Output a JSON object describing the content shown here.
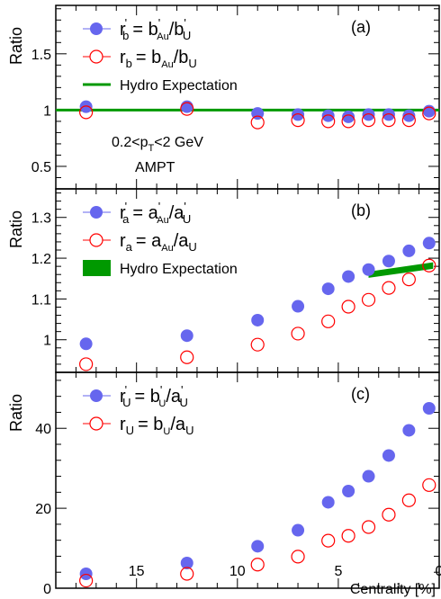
{
  "x_axis": {
    "label": "Centrality [%]",
    "range": [
      19.0,
      0.0
    ],
    "ticks": [
      15,
      10,
      5,
      0
    ]
  },
  "colors": {
    "filled": "#6666ee",
    "open": "#ff0000",
    "hydro": "#009900"
  },
  "chart_data": [
    {
      "type": "scatter",
      "panel_label": "(a)",
      "ylabel": "Ratio",
      "ylim": [
        0.3,
        1.93
      ],
      "yticks": [
        0.5,
        1.0,
        1.5
      ],
      "ytick_labels": [
        "0.5",
        "1",
        "1.5"
      ],
      "annotations": [
        "0.2<p_T<2 GeV",
        "AMPT"
      ],
      "x": [
        17.5,
        12.5,
        9,
        7,
        5.5,
        4.5,
        3.5,
        2.5,
        1.5,
        0.5
      ],
      "series": [
        {
          "name": "r'_b = b'_Au / b'_U",
          "style": "filled-circle",
          "values": [
            1.03,
            1.03,
            0.97,
            0.96,
            0.95,
            0.94,
            0.96,
            0.96,
            0.95,
            0.99
          ]
        },
        {
          "name": "r_b = b_Au / b_U",
          "style": "open-circle",
          "values": [
            0.98,
            1.01,
            0.89,
            0.91,
            0.9,
            0.9,
            0.91,
            0.91,
            0.91,
            0.97
          ]
        }
      ],
      "hydro": {
        "name": "Hydro Expectation",
        "style": "line",
        "x": [
          19,
          0
        ],
        "y": [
          1.0,
          1.0
        ]
      },
      "legend": [
        {
          "marker": "filled",
          "main": "r",
          "sub": "b",
          "sup": "'",
          "rhs": "= b",
          "rsub": "Au",
          "rsup": "'",
          "tail": "/b",
          "tsub": "U",
          "tsup": "'"
        },
        {
          "marker": "open",
          "main": "r",
          "sub": "b",
          "sup": "",
          "rhs": "= b",
          "rsub": "Au",
          "rsup": "",
          "tail": "/b",
          "tsub": "U",
          "tsup": ""
        },
        {
          "marker": "line",
          "text": "Hydro Expectation"
        }
      ]
    },
    {
      "type": "scatter",
      "panel_label": "(b)",
      "ylabel": "Ratio",
      "ylim": [
        0.92,
        1.37
      ],
      "yticks": [
        1.0,
        1.1,
        1.2,
        1.3
      ],
      "ytick_labels": [
        "1",
        "1.1",
        "1.2",
        "1.3"
      ],
      "annotations": [],
      "x": [
        17.5,
        12.5,
        9,
        7,
        5.5,
        4.5,
        3.5,
        2.5,
        1.5,
        0.5
      ],
      "series": [
        {
          "name": "r'_a = a'_Au / a'_U",
          "style": "filled-circle",
          "values": [
            0.99,
            1.01,
            1.048,
            1.082,
            1.125,
            1.155,
            1.172,
            1.193,
            1.218,
            1.237
          ]
        },
        {
          "name": "r_a = a_Au / a_U",
          "style": "open-circle",
          "values": [
            0.94,
            0.957,
            0.988,
            1.015,
            1.045,
            1.081,
            1.098,
            1.127,
            1.148,
            1.182
          ]
        }
      ],
      "hydro": {
        "name": "Hydro Expectation",
        "style": "band",
        "x": [
          3.5,
          0.3
        ],
        "y_low": [
          1.152,
          1.174
        ],
        "y_high": [
          1.167,
          1.19
        ]
      },
      "legend": [
        {
          "marker": "filled",
          "main": "r",
          "sub": "a",
          "sup": "'",
          "rhs": "= a",
          "rsub": "Au",
          "rsup": "'",
          "tail": "/a",
          "tsub": "U",
          "tsup": "'"
        },
        {
          "marker": "open",
          "main": "r",
          "sub": "a",
          "sup": "",
          "rhs": "= a",
          "rsub": "Au",
          "rsup": "",
          "tail": "/a",
          "tsub": "U",
          "tsup": ""
        },
        {
          "marker": "band",
          "text": "Hydro Expectation"
        }
      ]
    },
    {
      "type": "scatter",
      "panel_label": "(c)",
      "ylabel": "Ratio",
      "ylim": [
        0,
        54
      ],
      "yticks": [
        0,
        20,
        40
      ],
      "ytick_labels": [
        "0",
        "20",
        "40"
      ],
      "annotations": [],
      "x": [
        17.5,
        12.5,
        9,
        7,
        5.5,
        4.5,
        3.5,
        2.5,
        1.5,
        0.5
      ],
      "series": [
        {
          "name": "r'_U = b'_U / a'_U",
          "style": "filled-circle",
          "values": [
            3.6,
            6.3,
            10.5,
            14.5,
            21.5,
            24.3,
            28.0,
            33.2,
            39.5,
            45.0
          ]
        },
        {
          "name": "r_U = b_U / a_U",
          "style": "open-circle",
          "values": [
            1.9,
            3.6,
            5.9,
            7.9,
            11.9,
            13.1,
            15.3,
            18.4,
            22.0,
            25.8
          ]
        }
      ],
      "legend": [
        {
          "marker": "filled",
          "main": "r",
          "sub": "U",
          "sup": "'",
          "rhs": "= b",
          "rsub": "U",
          "rsup": "'",
          "tail": "/a",
          "tsub": "U",
          "tsup": "'"
        },
        {
          "marker": "open",
          "main": "r",
          "sub": "U",
          "sup": "",
          "rhs": "= b",
          "rsub": "U",
          "rsup": "",
          "tail": "/a",
          "tsub": "U",
          "tsup": ""
        }
      ]
    }
  ]
}
